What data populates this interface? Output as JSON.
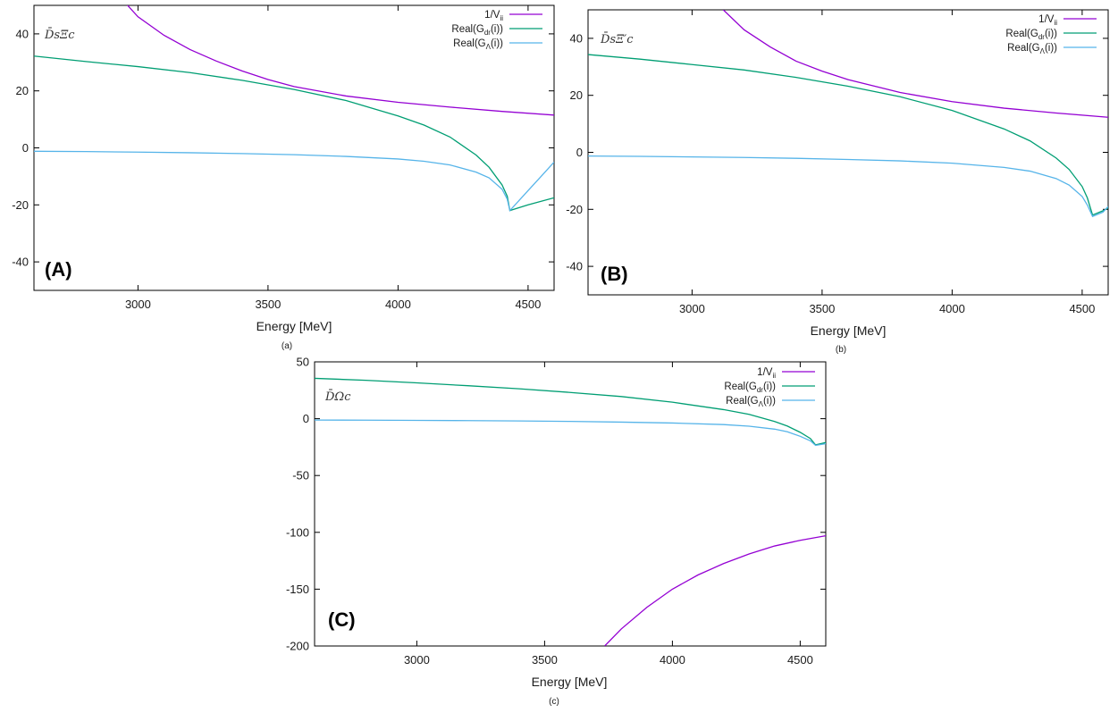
{
  "colors": {
    "inv_v": "#9400d3",
    "g_dr": "#009e73",
    "g_lambda": "#56b4e9",
    "axis": "#000000"
  },
  "legend_labels": {
    "inv_v_main": "1/V",
    "inv_v_sub": "ii",
    "g_dr_pre": "Real(G",
    "g_dr_sub": "dr",
    "g_dr_post": "(i))",
    "g_lambda_pre": "Real(G",
    "g_lambda_sub": "Λ",
    "g_lambda_post": "(i))"
  },
  "chart_data": [
    {
      "type": "line",
      "panel_label": "(A)",
      "channel_label": "D̄sΞc",
      "sub_caption": "(a)",
      "xlabel": "Energy [MeV]",
      "ylabel": "",
      "xlim": [
        2600,
        4600
      ],
      "ylim": [
        -50,
        50
      ],
      "xticks": [
        3000,
        3500,
        4000,
        4500
      ],
      "yticks": [
        -40,
        -20,
        0,
        20,
        40
      ],
      "threshold": 4430,
      "legend_position": "top-right",
      "series": [
        {
          "name": "1/Vii",
          "key": "inv_v",
          "x": [
            2950,
            3000,
            3100,
            3200,
            3300,
            3400,
            3500,
            3600,
            3800,
            4000,
            4200,
            4400,
            4600
          ],
          "y": [
            51,
            46,
            39.5,
            34.5,
            30.5,
            27,
            24,
            21.5,
            18.2,
            16,
            14.3,
            12.8,
            11.5
          ]
        },
        {
          "name": "Real(Gdr(i))",
          "key": "g_dr",
          "x": [
            2600,
            2800,
            3000,
            3200,
            3400,
            3600,
            3800,
            4000,
            4100,
            4200,
            4300,
            4350,
            4400,
            4420,
            4430,
            4500,
            4600
          ],
          "y": [
            32.2,
            30.3,
            28.5,
            26.4,
            23.7,
            20.5,
            16.6,
            11.2,
            8,
            3.8,
            -2.5,
            -6.8,
            -13,
            -17,
            -22,
            -20,
            -17.5
          ]
        },
        {
          "name": "Real(GΛ(i))",
          "key": "g_lambda",
          "x": [
            2600,
            2800,
            3000,
            3200,
            3400,
            3600,
            3800,
            4000,
            4100,
            4200,
            4300,
            4350,
            4400,
            4420,
            4430,
            4500,
            4550,
            4600
          ],
          "y": [
            -1.2,
            -1.3,
            -1.5,
            -1.7,
            -2,
            -2.4,
            -3,
            -3.9,
            -4.7,
            -6,
            -8.5,
            -10.5,
            -14.5,
            -18,
            -22,
            -15,
            -10,
            -5
          ]
        }
      ]
    },
    {
      "type": "line",
      "panel_label": "(B)",
      "channel_label": "D̄sΞ′c",
      "sub_caption": "(b)",
      "xlabel": "Energy [MeV]",
      "ylabel": "",
      "xlim": [
        2600,
        4600
      ],
      "ylim": [
        -50,
        50
      ],
      "xticks": [
        3000,
        3500,
        4000,
        4500
      ],
      "yticks": [
        -40,
        -20,
        0,
        20,
        40
      ],
      "threshold": 4540,
      "legend_position": "top-right",
      "series": [
        {
          "name": "1/Vii",
          "key": "inv_v",
          "x": [
            3120,
            3200,
            3300,
            3400,
            3500,
            3600,
            3800,
            4000,
            4200,
            4400,
            4600
          ],
          "y": [
            50,
            43,
            37,
            32,
            28.5,
            25.5,
            21,
            17.8,
            15.5,
            13.8,
            12.3
          ]
        },
        {
          "name": "Real(Gdr(i))",
          "key": "g_dr",
          "x": [
            2600,
            2800,
            3000,
            3200,
            3400,
            3600,
            3800,
            4000,
            4200,
            4300,
            4400,
            4450,
            4500,
            4520,
            4540,
            4580,
            4600
          ],
          "y": [
            34.3,
            32.7,
            30.8,
            28.9,
            26.3,
            23.2,
            19.5,
            14.7,
            8.2,
            4,
            -2,
            -6,
            -12,
            -16,
            -22,
            -20.5,
            -19.5
          ]
        },
        {
          "name": "Real(GΛ(i))",
          "key": "g_lambda",
          "x": [
            2600,
            2800,
            3000,
            3200,
            3400,
            3600,
            3800,
            4000,
            4200,
            4300,
            4400,
            4450,
            4500,
            4520,
            4540,
            4580,
            4600
          ],
          "y": [
            -1.3,
            -1.4,
            -1.6,
            -1.8,
            -2.1,
            -2.5,
            -3,
            -3.8,
            -5.3,
            -6.6,
            -9.2,
            -11.5,
            -15.5,
            -18.5,
            -22.5,
            -21,
            -19
          ]
        }
      ]
    },
    {
      "type": "line",
      "panel_label": "(C)",
      "channel_label": "D̄Ωc",
      "sub_caption": "(c)",
      "xlabel": "Energy [MeV]",
      "ylabel": "",
      "xlim": [
        2600,
        4600
      ],
      "ylim": [
        -200,
        50
      ],
      "xticks": [
        3000,
        3500,
        4000,
        4500
      ],
      "yticks": [
        -200,
        -150,
        -100,
        -50,
        0,
        50
      ],
      "threshold": 4560,
      "legend_position": "top-right",
      "series": [
        {
          "name": "1/Vii",
          "key": "inv_v",
          "x": [
            3735,
            3800,
            3900,
            4000,
            4100,
            4200,
            4300,
            4400,
            4500,
            4600
          ],
          "y": [
            -200,
            -185,
            -166,
            -150,
            -137.5,
            -127.5,
            -119,
            -112,
            -107,
            -103
          ]
        },
        {
          "name": "Real(Gdr(i))",
          "key": "g_dr",
          "x": [
            2600,
            2800,
            3000,
            3200,
            3400,
            3600,
            3800,
            4000,
            4200,
            4300,
            4400,
            4450,
            4500,
            4540,
            4560,
            4600
          ],
          "y": [
            35.5,
            33.8,
            31.5,
            29,
            26.3,
            23.1,
            19.5,
            14.5,
            8,
            3.8,
            -2.5,
            -6.5,
            -12,
            -17.5,
            -23,
            -21
          ]
        },
        {
          "name": "Real(GΛ(i))",
          "key": "g_lambda",
          "x": [
            2600,
            2800,
            3000,
            3200,
            3400,
            3600,
            3800,
            4000,
            4200,
            4300,
            4400,
            4450,
            4500,
            4540,
            4560,
            4600
          ],
          "y": [
            -1.2,
            -1.3,
            -1.5,
            -1.7,
            -2,
            -2.4,
            -3,
            -3.8,
            -5.2,
            -6.6,
            -9.2,
            -11.5,
            -15.5,
            -19.5,
            -23.5,
            -22
          ]
        }
      ]
    }
  ]
}
